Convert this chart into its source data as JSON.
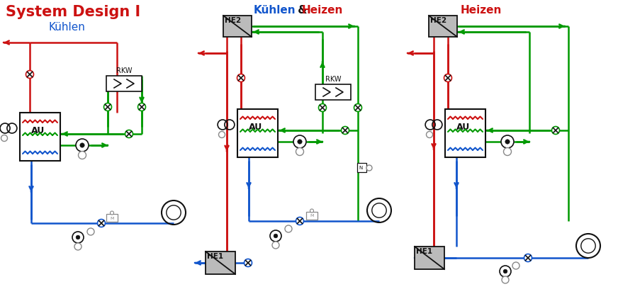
{
  "title1": "System Design I",
  "subtitle1": "Kühlen",
  "title2_blue": "Kühlen",
  "title2_amp": " & ",
  "title2_red": "Heizen",
  "title3": "Heizen",
  "color_red": "#CC1111",
  "color_blue": "#1155CC",
  "color_green": "#009900",
  "color_dark": "#111111",
  "color_gray": "#888888",
  "color_box_fill": "#BBBBBB",
  "color_white": "#FFFFFF",
  "color_bg": "#FFFFFF",
  "lw": 1.8,
  "lw_thin": 1.0
}
